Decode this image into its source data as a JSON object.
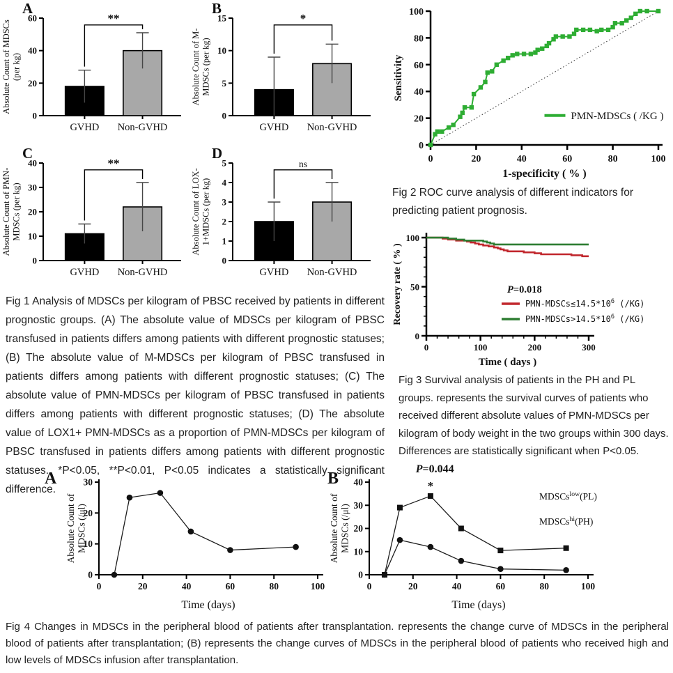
{
  "captions": {
    "fig1": "Fig 1 Analysis of MDSCs per kilogram of PBSC received by patients in different prognostic groups. (A) The absolute value of MDSCs per kilogram of PBSC transfused in patients differs among patients with different prognostic statuses; (B) The absolute value of M-MDSCs per kilogram of PBSC transfused in patients differs among patients with different prognostic statuses; (C) The absolute value of PMN-MDSCs per kilogram of PBSC transfused in patients differs among patients with different prognostic statuses; (D) The absolute value of LOX1+ PMN-MDSCs as a proportion of PMN-MDSCs per kilogram of PBSC transfused in patients differs among patients with different prognostic statuses. *P<0.05, **P<0.01, P<0.05 indicates a statistically significant difference.",
    "fig2": "Fig 2 ROC curve analysis of different indicators for predicting patient prognosis.",
    "fig3": "Fig 3 Survival analysis of patients in the PH and PL groups. represents the survival curves of patients who received different absolute values of PMN-MDSCs per kilogram of body weight in the two groups within 300 days. Differences are statistically significant when P<0.05.",
    "fig4": "Fig 4 Changes in MDSCs in the peripheral blood of patients after transplantation.  represents the change curve of MDSCs in the peripheral blood of patients after transplantation; (B) represents the change curves of MDSCs in the peripheral blood of patients who received high and low levels of MDSCs infusion after transplantation."
  },
  "colors": {
    "roc_green": "#2ead33",
    "survival_red": "#c1272d",
    "survival_green": "#2e7d32",
    "bar_black": "#000000",
    "bar_gray": "#a8a8a8"
  },
  "chart_data": [
    {
      "id": "fig1A",
      "type": "bar",
      "panel": "A",
      "ylabel": [
        "Absolute Count of MDSCs",
        "(per kg)"
      ],
      "ylim": [
        0,
        60
      ],
      "yticks": [
        0,
        20,
        40,
        60
      ],
      "categories": [
        "GVHD",
        "Non-GVHD"
      ],
      "values": [
        18,
        40
      ],
      "errors": [
        10,
        11
      ],
      "bar_colors": [
        "#000000",
        "#a8a8a8"
      ],
      "sig": "**"
    },
    {
      "id": "fig1B",
      "type": "bar",
      "panel": "B",
      "ylabel": [
        "Absolute Count of M-",
        "MDSCs (per kg)"
      ],
      "ylim": [
        0,
        15
      ],
      "yticks": [
        0,
        5,
        10,
        15
      ],
      "categories": [
        "GVHD",
        "Non-GVHD"
      ],
      "values": [
        4,
        8
      ],
      "errors": [
        5,
        3
      ],
      "bar_colors": [
        "#000000",
        "#a8a8a8"
      ],
      "sig": "*"
    },
    {
      "id": "fig1C",
      "type": "bar",
      "panel": "C",
      "ylabel": [
        "Absolute Count of PMN-",
        "MDSCs (per kg)"
      ],
      "ylim": [
        0,
        40
      ],
      "yticks": [
        0,
        10,
        20,
        30,
        40
      ],
      "categories": [
        "GVHD",
        "Non-GVHD"
      ],
      "values": [
        11,
        22
      ],
      "errors": [
        4,
        10
      ],
      "bar_colors": [
        "#000000",
        "#a8a8a8"
      ],
      "sig": "**"
    },
    {
      "id": "fig1D",
      "type": "bar",
      "panel": "D",
      "ylabel": [
        "Absolute Count of LOX-",
        "1+MDSCs (per kg)"
      ],
      "ylim": [
        0,
        5
      ],
      "yticks": [
        0,
        1,
        2,
        3,
        4,
        5
      ],
      "categories": [
        "GVHD",
        "Non-GVHD"
      ],
      "values": [
        2,
        3
      ],
      "errors": [
        1,
        1
      ],
      "bar_colors": [
        "#000000",
        "#a8a8a8"
      ],
      "sig": "ns"
    },
    {
      "id": "fig2",
      "type": "roc",
      "xlabel": "1-specificity ( % )",
      "ylabel": "Sensitivity",
      "xlim": [
        0,
        100
      ],
      "ylim": [
        0,
        100
      ],
      "xticks": [
        0,
        20,
        40,
        60,
        80,
        100
      ],
      "yticks": [
        0,
        20,
        40,
        60,
        80,
        100
      ],
      "legend": "PMN-MDSCs ( /KG )",
      "color": "#2ead33",
      "points": [
        [
          0,
          0
        ],
        [
          2,
          8
        ],
        [
          3,
          10
        ],
        [
          5,
          10
        ],
        [
          8,
          13
        ],
        [
          10,
          15
        ],
        [
          13,
          21
        ],
        [
          14,
          24
        ],
        [
          15,
          28
        ],
        [
          18,
          28
        ],
        [
          19,
          38
        ],
        [
          22,
          43
        ],
        [
          24,
          47
        ],
        [
          25,
          54
        ],
        [
          27,
          55
        ],
        [
          29,
          60
        ],
        [
          32,
          63
        ],
        [
          34,
          65
        ],
        [
          36,
          67
        ],
        [
          38,
          68
        ],
        [
          41,
          68
        ],
        [
          44,
          68
        ],
        [
          46,
          69
        ],
        [
          47,
          71
        ],
        [
          49,
          72
        ],
        [
          51,
          74
        ],
        [
          52,
          76
        ],
        [
          54,
          79
        ],
        [
          55,
          81
        ],
        [
          58,
          81
        ],
        [
          61,
          81
        ],
        [
          63,
          83
        ],
        [
          64,
          86
        ],
        [
          67,
          86
        ],
        [
          70,
          86
        ],
        [
          73,
          85
        ],
        [
          75,
          86
        ],
        [
          78,
          86
        ],
        [
          80,
          88
        ],
        [
          81,
          91
        ],
        [
          84,
          91
        ],
        [
          86,
          93
        ],
        [
          88,
          95
        ],
        [
          90,
          98
        ],
        [
          92,
          100
        ],
        [
          95,
          100
        ],
        [
          100,
          100
        ]
      ]
    },
    {
      "id": "fig3",
      "type": "survival",
      "ylabel": "Recovery rate ( % )",
      "xlabel": "Time ( days )",
      "xlim": [
        0,
        300
      ],
      "ylim": [
        0,
        105
      ],
      "yticks": [
        0,
        50,
        100
      ],
      "xticks": [
        0,
        100,
        200,
        300
      ],
      "p_label": "P=0.018",
      "series": [
        {
          "label_base": "PMN-MDSCs≤14.5*10",
          "label_sup": "6",
          "label_rest": " (/KG)",
          "color": "#c1272d",
          "points": [
            [
              0,
              100
            ],
            [
              30,
              99
            ],
            [
              40,
              98
            ],
            [
              55,
              97
            ],
            [
              75,
              96
            ],
            [
              82,
              95
            ],
            [
              90,
              94
            ],
            [
              97,
              93
            ],
            [
              105,
              92
            ],
            [
              115,
              91
            ],
            [
              125,
              90
            ],
            [
              132,
              89
            ],
            [
              137,
              88
            ],
            [
              143,
              87
            ],
            [
              150,
              86
            ],
            [
              180,
              85
            ],
            [
              200,
              84
            ],
            [
              212,
              83
            ],
            [
              268,
              82
            ],
            [
              288,
              81
            ],
            [
              300,
              81
            ]
          ]
        },
        {
          "label_base": "PMN-MDSCs>14.5*10",
          "label_sup": "6",
          "label_rest": " (/KG)",
          "color": "#2e7d32",
          "points": [
            [
              0,
              100
            ],
            [
              40,
              99
            ],
            [
              55,
              98
            ],
            [
              70,
              97
            ],
            [
              105,
              96
            ],
            [
              112,
              95
            ],
            [
              118,
              94
            ],
            [
              125,
              93
            ],
            [
              300,
              93
            ]
          ]
        }
      ]
    },
    {
      "id": "fig4A",
      "type": "line",
      "panel": "A",
      "ylabel": [
        "Absolute Count of",
        "MDSCs (/μl)"
      ],
      "xlabel": "Time (days)",
      "xlim": [
        0,
        100
      ],
      "ylim": [
        0,
        30
      ],
      "xticks": [
        0,
        20,
        40,
        60,
        80,
        100
      ],
      "yticks": [
        0,
        10,
        20,
        30
      ],
      "series": [
        {
          "marker": "circle",
          "x": [
            7,
            14,
            28,
            42,
            60,
            90
          ],
          "y": [
            0,
            25,
            26.5,
            14,
            8,
            9
          ]
        }
      ]
    },
    {
      "id": "fig4B",
      "type": "line",
      "panel": "B",
      "ylabel": [
        "Absolute Count of",
        "MDSCs (/μl)"
      ],
      "xlabel": "Time (days)",
      "xlim": [
        0,
        100
      ],
      "ylim": [
        0,
        40
      ],
      "xticks": [
        0,
        20,
        40,
        60,
        80,
        100
      ],
      "yticks": [
        0,
        10,
        20,
        30,
        40
      ],
      "p_label": "P=0.044",
      "star_at": {
        "x": 28,
        "y": 34
      },
      "series": [
        {
          "marker": "square",
          "x": [
            7,
            14,
            28,
            42,
            60,
            90
          ],
          "y": [
            0,
            29,
            34,
            20,
            10.5,
            11.5
          ]
        },
        {
          "marker": "circle",
          "x": [
            7,
            14,
            28,
            42,
            60,
            90
          ],
          "y": [
            0,
            15,
            12,
            6,
            2.5,
            2
          ]
        }
      ],
      "legend": [
        {
          "base": "MDSCs",
          "sup": "low",
          "rest": "(PL)"
        },
        {
          "base": "MDSCs",
          "sup": "hi",
          "rest": "(PH)"
        }
      ]
    }
  ]
}
